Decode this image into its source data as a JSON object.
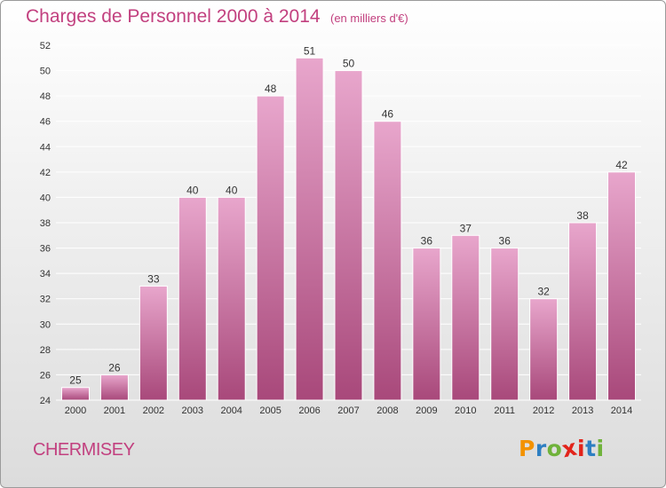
{
  "header": {
    "title": "Charges de Personnel 2000 à 2014",
    "subtitle": "(en milliers d'€)"
  },
  "footer": {
    "commune": "CHERMISEY",
    "logo_letters": [
      "P",
      "r",
      "o",
      "x",
      "i",
      "t",
      "i"
    ],
    "logo_colors": [
      "#f39200",
      "#2e7fc2",
      "#6fb23a",
      "#e2231a",
      "#e2231a",
      "#2e7fc2",
      "#6fb23a"
    ]
  },
  "colors": {
    "bar_top": "#e8a6cc",
    "bar_bottom": "#a8487a",
    "bar_stroke": "#ffffff",
    "grid": "#ffffff",
    "axis_text": "#333333",
    "label_text": "#333333"
  },
  "chart_data": {
    "type": "bar",
    "title": "Charges de Personnel 2000 à 2014",
    "subtitle": "(en milliers d'€)",
    "categories": [
      "2000",
      "2001",
      "2002",
      "2003",
      "2004",
      "2005",
      "2006",
      "2007",
      "2008",
      "2009",
      "2010",
      "2011",
      "2012",
      "2013",
      "2014"
    ],
    "values": [
      25,
      26,
      33,
      40,
      40,
      48,
      51,
      50,
      46,
      36,
      37,
      36,
      32,
      38,
      42
    ],
    "ylim": [
      24,
      52
    ],
    "yticks": [
      24,
      26,
      28,
      30,
      32,
      34,
      36,
      38,
      40,
      42,
      44,
      46,
      48,
      50,
      52
    ],
    "grid": true,
    "legend": "none"
  }
}
